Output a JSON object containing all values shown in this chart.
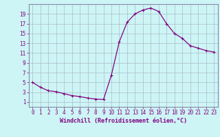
{
  "x": [
    0,
    1,
    2,
    3,
    4,
    5,
    6,
    7,
    8,
    9,
    10,
    11,
    12,
    13,
    14,
    15,
    16,
    17,
    18,
    19,
    20,
    21,
    22,
    23
  ],
  "y": [
    5,
    4,
    3.3,
    3.1,
    2.7,
    2.3,
    2.1,
    1.8,
    1.6,
    1.5,
    6.5,
    13.3,
    17.3,
    19.0,
    19.8,
    20.2,
    19.5,
    17.0,
    15.0,
    14.0,
    12.5,
    12.0,
    11.5,
    11.2
  ],
  "line_color": "#800080",
  "marker": "+",
  "marker_size": 3,
  "bg_color": "#cdf5f5",
  "grid_color": "#aabbcc",
  "xlabel": "Windchill (Refroidissement éolien,°C)",
  "ylabel": "",
  "xlim": [
    -0.5,
    23.5
  ],
  "ylim": [
    0,
    21
  ],
  "yticks": [
    1,
    3,
    5,
    7,
    9,
    11,
    13,
    15,
    17,
    19
  ],
  "xticks": [
    0,
    1,
    2,
    3,
    4,
    5,
    6,
    7,
    8,
    9,
    10,
    11,
    12,
    13,
    14,
    15,
    16,
    17,
    18,
    19,
    20,
    21,
    22,
    23
  ],
  "title": "",
  "linewidth": 0.9,
  "tick_fontsize": 5.5,
  "xlabel_fontsize": 6.0
}
